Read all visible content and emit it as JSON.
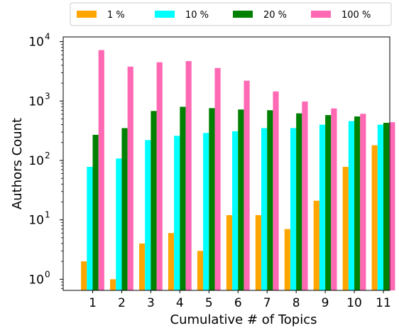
{
  "chart_data": {
    "type": "bar",
    "title": "",
    "xlabel": "Cumulative # of Topics",
    "ylabel": "Authors Count",
    "yscale": "log",
    "ylim": [
      0.65,
      12000
    ],
    "y_ticks": [
      {
        "value": 1,
        "base": "10",
        "exp": "0"
      },
      {
        "value": 10,
        "base": "10",
        "exp": "1"
      },
      {
        "value": 100,
        "base": "10",
        "exp": "2"
      },
      {
        "value": 1000,
        "base": "10",
        "exp": "3"
      },
      {
        "value": 10000,
        "base": "10",
        "exp": "4"
      }
    ],
    "categories": [
      "1",
      "2",
      "3",
      "4",
      "5",
      "6",
      "7",
      "8",
      "9",
      "10",
      "11"
    ],
    "series": [
      {
        "name": "1 %",
        "color": "#ffa500",
        "values": [
          2,
          1,
          4,
          6,
          3,
          12,
          12,
          7,
          21,
          78,
          180
        ]
      },
      {
        "name": "10 %",
        "color": "#00ffff",
        "values": [
          78,
          108,
          220,
          260,
          290,
          310,
          350,
          350,
          400,
          460,
          400
        ]
      },
      {
        "name": "20 %",
        "color": "#008000",
        "values": [
          270,
          350,
          680,
          800,
          760,
          720,
          700,
          620,
          580,
          550,
          430
        ]
      },
      {
        "name": "100 %",
        "color": "#ff69b4",
        "values": [
          7200,
          3800,
          4500,
          4700,
          3600,
          2200,
          1450,
          980,
          750,
          610,
          440
        ]
      }
    ],
    "grid": false,
    "legend_position": "top"
  }
}
